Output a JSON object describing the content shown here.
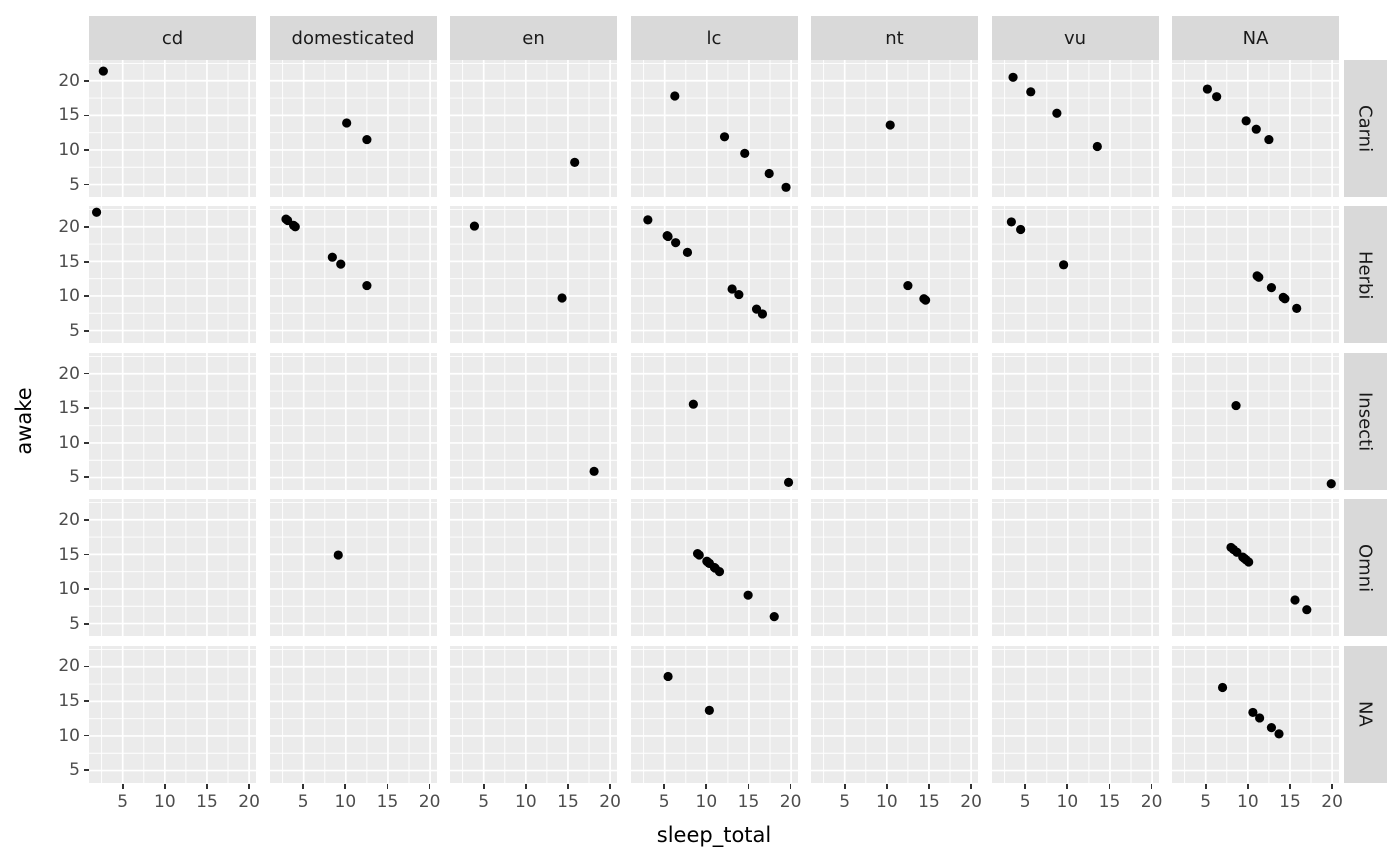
{
  "chart_data": {
    "type": "scatter",
    "title": "",
    "xlabel": "sleep_total",
    "ylabel": "awake",
    "x_ticks": [
      5,
      10,
      15,
      20
    ],
    "y_ticks": [
      5,
      10,
      15,
      20
    ],
    "x_minor_ticks": [
      2.5,
      7.5,
      12.5,
      17.5
    ],
    "y_minor_ticks": [
      7.5,
      12.5,
      17.5,
      22.5
    ],
    "xlim": [
      1.0,
      20.82
    ],
    "ylim": [
      3.2,
      23.0
    ],
    "grid": "on",
    "legend": "none",
    "facet_cols": [
      "cd",
      "domesticated",
      "en",
      "lc",
      "nt",
      "vu",
      "NA"
    ],
    "facet_rows": [
      "Carni",
      "Herbi",
      "Insecti",
      "Omni",
      "NA"
    ],
    "colors": {
      "panel_bg": "#EBEBEB",
      "strip_bg": "#D9D9D9",
      "grid_line": "#FFFFFF",
      "point": "#000000",
      "tick_text": "#4D4D4D",
      "strip_text": "#1A1A1A",
      "axis_title_text": "#000000",
      "page_bg": "#FFFFFF"
    },
    "facets": [
      {
        "row": "Carni",
        "col": "cd",
        "points": [
          [
            2.7,
            21.4
          ]
        ]
      },
      {
        "row": "Carni",
        "col": "domesticated",
        "points": [
          [
            10.1,
            13.9
          ],
          [
            12.5,
            11.5
          ]
        ]
      },
      {
        "row": "Carni",
        "col": "en",
        "points": [
          [
            15.8,
            8.2
          ]
        ]
      },
      {
        "row": "Carni",
        "col": "lc",
        "points": [
          [
            6.2,
            17.8
          ],
          [
            12.1,
            11.9
          ],
          [
            14.5,
            9.5
          ],
          [
            17.4,
            6.6
          ],
          [
            19.4,
            4.6
          ]
        ]
      },
      {
        "row": "Carni",
        "col": "nt",
        "points": [
          [
            10.4,
            13.6
          ]
        ]
      },
      {
        "row": "Carni",
        "col": "vu",
        "points": [
          [
            3.5,
            20.5
          ],
          [
            5.6,
            18.4
          ],
          [
            8.7,
            15.3
          ],
          [
            13.5,
            10.5
          ]
        ]
      },
      {
        "row": "Carni",
        "col": "NA",
        "points": [
          [
            5.2,
            18.8
          ],
          [
            6.3,
            17.7
          ],
          [
            9.8,
            14.2
          ],
          [
            11.0,
            13.0
          ],
          [
            12.5,
            11.5
          ]
        ]
      },
      {
        "row": "Herbi",
        "col": "cd",
        "points": [
          [
            1.9,
            22.1
          ]
        ]
      },
      {
        "row": "Herbi",
        "col": "domesticated",
        "points": [
          [
            2.9,
            21.1
          ],
          [
            3.1,
            20.9
          ],
          [
            3.8,
            20.2
          ],
          [
            4.0,
            20.0
          ],
          [
            8.4,
            15.6
          ],
          [
            9.4,
            14.6
          ],
          [
            12.5,
            11.5
          ]
        ]
      },
      {
        "row": "Herbi",
        "col": "en",
        "points": [
          [
            3.9,
            20.1
          ],
          [
            14.3,
            9.7
          ]
        ]
      },
      {
        "row": "Herbi",
        "col": "lc",
        "points": [
          [
            3.0,
            21.0
          ],
          [
            5.3,
            18.7
          ],
          [
            5.3,
            18.7
          ],
          [
            5.4,
            18.6
          ],
          [
            6.3,
            17.7
          ],
          [
            7.7,
            16.3
          ],
          [
            13.0,
            11.0
          ],
          [
            13.8,
            10.2
          ],
          [
            15.9,
            8.1
          ],
          [
            16.6,
            7.4
          ]
        ]
      },
      {
        "row": "Herbi",
        "col": "nt",
        "points": [
          [
            12.5,
            11.5
          ],
          [
            14.4,
            9.6
          ],
          [
            14.6,
            9.4
          ]
        ]
      },
      {
        "row": "Herbi",
        "col": "vu",
        "points": [
          [
            3.3,
            20.7
          ],
          [
            4.4,
            19.6
          ],
          [
            9.5,
            14.5
          ]
        ]
      },
      {
        "row": "Herbi",
        "col": "NA",
        "points": [
          [
            11.1,
            12.9
          ],
          [
            11.3,
            12.7
          ],
          [
            12.8,
            11.2
          ],
          [
            14.2,
            9.8
          ],
          [
            14.4,
            9.6
          ],
          [
            15.8,
            8.2
          ]
        ]
      },
      {
        "row": "Insecti",
        "col": "en",
        "points": [
          [
            18.1,
            5.9
          ]
        ]
      },
      {
        "row": "Insecti",
        "col": "lc",
        "points": [
          [
            8.4,
            15.6
          ],
          [
            19.7,
            4.3
          ]
        ]
      },
      {
        "row": "Insecti",
        "col": "NA",
        "points": [
          [
            8.6,
            15.4
          ],
          [
            19.9,
            4.1
          ]
        ]
      },
      {
        "row": "Omni",
        "col": "domesticated",
        "points": [
          [
            9.1,
            14.9
          ]
        ]
      },
      {
        "row": "Omni",
        "col": "lc",
        "points": [
          [
            8.9,
            15.1
          ],
          [
            9.1,
            14.9
          ],
          [
            10.0,
            14.0
          ],
          [
            10.1,
            13.9
          ],
          [
            10.3,
            13.7
          ],
          [
            10.3,
            13.7
          ],
          [
            10.9,
            13.1
          ],
          [
            11.0,
            13.0
          ],
          [
            11.5,
            12.5
          ],
          [
            14.9,
            9.1
          ],
          [
            18.0,
            6.0
          ]
        ]
      },
      {
        "row": "Omni",
        "col": "NA",
        "points": [
          [
            8.0,
            16.0
          ],
          [
            8.3,
            15.7
          ],
          [
            8.7,
            15.3
          ],
          [
            9.4,
            14.6
          ],
          [
            9.6,
            14.4
          ],
          [
            9.8,
            14.2
          ],
          [
            10.1,
            13.9
          ],
          [
            15.6,
            8.4
          ],
          [
            17.0,
            7.0
          ]
        ]
      },
      {
        "row": "NA",
        "col": "lc",
        "points": [
          [
            5.4,
            18.6
          ],
          [
            10.3,
            13.7
          ]
        ]
      },
      {
        "row": "NA",
        "col": "NA",
        "points": [
          [
            7.0,
            17.0
          ],
          [
            10.6,
            13.4
          ],
          [
            11.4,
            12.6
          ],
          [
            12.8,
            11.2
          ],
          [
            13.7,
            10.3
          ]
        ]
      }
    ]
  }
}
